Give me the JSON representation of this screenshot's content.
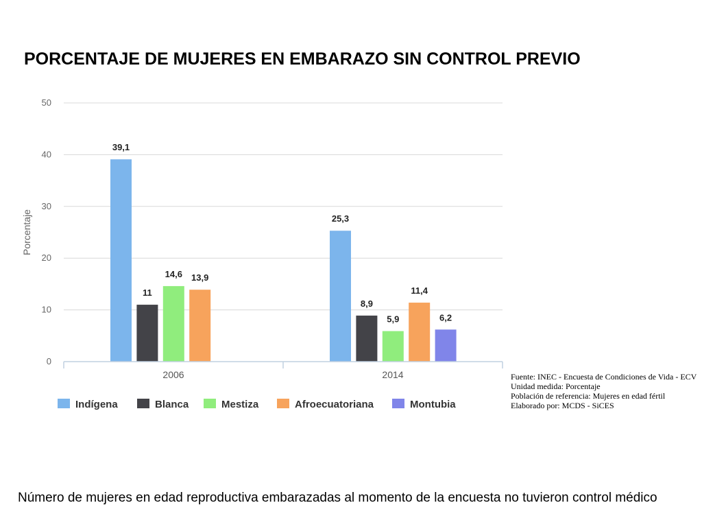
{
  "slide": {
    "title": "PORCENTAJE DE MUJERES EN EMBARAZO SIN CONTROL PREVIO",
    "caption": "Número de mujeres en edad reproductiva embarazadas al momento de la encuesta no tuvieron control médico"
  },
  "notes": [
    "Fuente: INEC - Encuesta de Condiciones de Vida - ECV",
    "Unidad medida: Porcentaje",
    "Población de referencia: Mujeres en edad fértil",
    "Elaborado por: MCDS - SiCES"
  ],
  "chart_data": {
    "type": "bar",
    "title": "",
    "xlabel": "",
    "ylabel": "Porcentaje",
    "ylim": [
      0,
      50
    ],
    "yticks": [
      0,
      10,
      20,
      30,
      40,
      50
    ],
    "grid": true,
    "legend_position": "bottom",
    "categories": [
      "2006",
      "2014"
    ],
    "series": [
      {
        "name": "Indígena",
        "color": "#7cb5ec",
        "values": [
          39.1,
          25.3
        ],
        "labels": [
          "39,1",
          "25,3"
        ]
      },
      {
        "name": "Blanca",
        "color": "#434348",
        "values": [
          11,
          8.9
        ],
        "labels": [
          "11",
          "8,9"
        ]
      },
      {
        "name": "Mestiza",
        "color": "#90ed7d",
        "values": [
          14.6,
          5.9
        ],
        "labels": [
          "14,6",
          "5,9"
        ]
      },
      {
        "name": "Afroecuatoriana",
        "color": "#f7a35c",
        "values": [
          13.9,
          11.4
        ],
        "labels": [
          "13,9",
          "11,4"
        ]
      },
      {
        "name": "Montubia",
        "color": "#8085e9",
        "values": [
          null,
          6.2
        ],
        "labels": [
          null,
          "6,2"
        ]
      }
    ]
  }
}
